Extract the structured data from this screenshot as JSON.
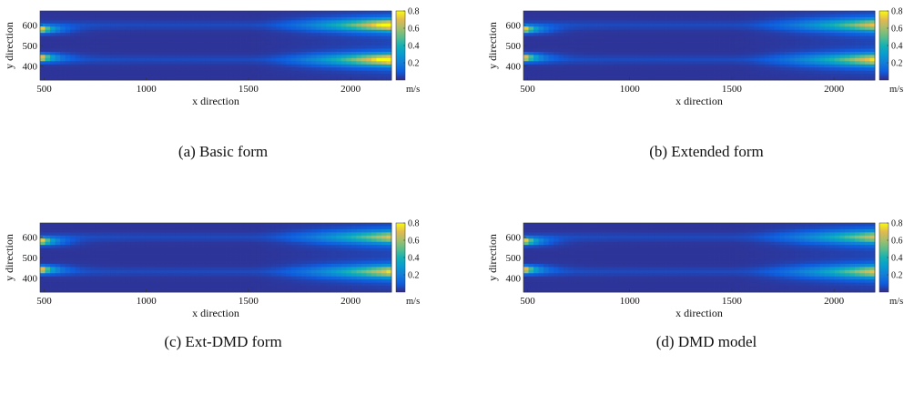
{
  "chart_data": [
    {
      "type": "heatmap",
      "caption": "(a)  Basic form",
      "xlabel": "x direction",
      "ylabel": "y direction",
      "xlim": [
        480,
        2200
      ],
      "ylim": [
        330,
        670
      ],
      "xticks": [
        500,
        1000,
        1500,
        2000
      ],
      "yticks": [
        400,
        500,
        600
      ],
      "colorbar": {
        "min": 0,
        "max": 0.8,
        "ticks": [
          0.2,
          0.4,
          0.6,
          0.8
        ],
        "unit": "m/s",
        "colormap": "parula"
      },
      "features": {
        "inlet_jets": [
          440,
          580
        ],
        "outlet_jets": [
          {
            "y": 600,
            "value": 0.75
          },
          {
            "y": 430,
            "value": 0.78
          }
        ],
        "background_value": 0.02
      }
    },
    {
      "type": "heatmap",
      "caption": "(b)  Extended form",
      "xlabel": "x direction",
      "ylabel": "y direction",
      "xlim": [
        480,
        2200
      ],
      "ylim": [
        330,
        670
      ],
      "xticks": [
        500,
        1000,
        1500,
        2000
      ],
      "yticks": [
        400,
        500,
        600
      ],
      "colorbar": {
        "min": 0,
        "max": 0.8,
        "ticks": [
          0.2,
          0.4,
          0.6,
          0.8
        ],
        "unit": "m/s",
        "colormap": "parula"
      },
      "features": {
        "inlet_jets": [
          440,
          580
        ],
        "outlet_jets": [
          {
            "y": 600,
            "value": 0.55
          },
          {
            "y": 430,
            "value": 0.6
          }
        ],
        "background_value": 0.02
      }
    },
    {
      "type": "heatmap",
      "caption": "(c)  Ext-DMD form",
      "xlabel": "x direction",
      "ylabel": "y direction",
      "xlim": [
        480,
        2200
      ],
      "ylim": [
        330,
        670
      ],
      "xticks": [
        500,
        1000,
        1500,
        2000
      ],
      "yticks": [
        400,
        500,
        600
      ],
      "colorbar": {
        "min": 0,
        "max": 0.8,
        "ticks": [
          0.2,
          0.4,
          0.6,
          0.8
        ],
        "unit": "m/s",
        "colormap": "parula"
      },
      "features": {
        "inlet_jets": [
          440,
          580
        ],
        "outlet_jets": [
          {
            "y": 600,
            "value": 0.55
          },
          {
            "y": 430,
            "value": 0.6
          }
        ],
        "background_value": 0.02
      }
    },
    {
      "type": "heatmap",
      "caption": "(d)  DMD model",
      "xlabel": "x direction",
      "ylabel": "y direction",
      "xlim": [
        480,
        2200
      ],
      "ylim": [
        330,
        670
      ],
      "xticks": [
        500,
        1000,
        1500,
        2000
      ],
      "yticks": [
        400,
        500,
        600
      ],
      "colorbar": {
        "min": 0,
        "max": 0.8,
        "ticks": [
          0.2,
          0.4,
          0.6,
          0.8
        ],
        "unit": "m/s",
        "colormap": "parula"
      },
      "features": {
        "inlet_jets": [
          440,
          580
        ],
        "outlet_jets": [
          {
            "y": 600,
            "value": 0.52
          },
          {
            "y": 430,
            "value": 0.55
          }
        ],
        "background_value": 0.02
      }
    }
  ]
}
